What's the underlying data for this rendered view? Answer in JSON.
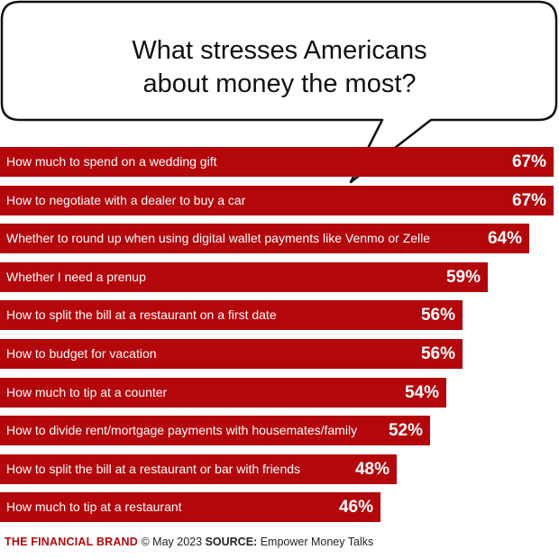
{
  "chart_data": {
    "type": "bar",
    "orientation": "horizontal",
    "title": "What stresses Americans about money the most?",
    "categories": [
      "How much to spend on a wedding gift",
      "How to negotiate with a dealer to buy a car",
      "Whether to round up when using digital wallet payments like Venmo or Zelle",
      "Whether I need a prenup",
      "How to split the bill at a restaurant on a first date",
      "How to budget for vacation",
      "How much to tip at a counter",
      "How to divide rent/mortgage payments with housemates/family",
      "How to split the bill at a restaurant or bar with friends",
      "How much to tip at a restaurant"
    ],
    "values": [
      67,
      67,
      64,
      59,
      56,
      56,
      54,
      52,
      48,
      46
    ],
    "value_labels": [
      "67%",
      "67%",
      "64%",
      "59%",
      "56%",
      "56%",
      "54%",
      "52%",
      "48%",
      "46%"
    ],
    "xlim": [
      0,
      67
    ],
    "bar_color": "#b4070b",
    "grid": false
  },
  "title_line1": "What stresses Americans",
  "title_line2": "about money the most?",
  "footer": {
    "brand": "THE FINANCIAL BRAND",
    "date": "© May 2023",
    "source_label": "SOURCE:",
    "source": "Empower Money Talks"
  }
}
